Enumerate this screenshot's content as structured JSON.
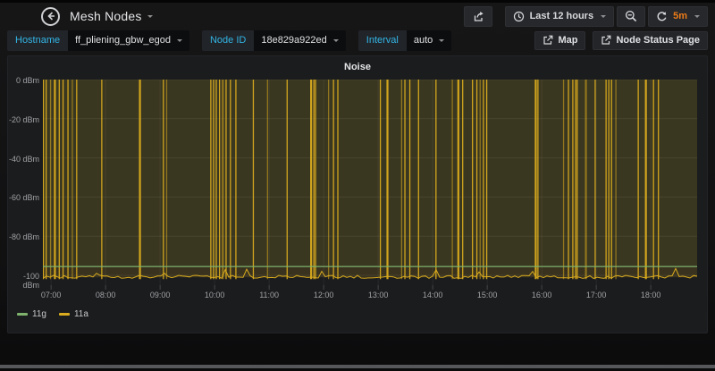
{
  "header": {
    "title": "Mesh Nodes",
    "time_range": "Last 12 hours",
    "refresh_interval": "5m"
  },
  "variables": [
    {
      "label": "Hostname",
      "value": "ff_pliening_gbw_egod"
    },
    {
      "label": "Node ID",
      "value": "18e829a922ed"
    },
    {
      "label": "Interval",
      "value": "auto"
    }
  ],
  "links": [
    {
      "label": "Map"
    },
    {
      "label": "Node Status Page"
    }
  ],
  "panel": {
    "title": "Noise"
  },
  "colors": {
    "accent_cyan": "#33b5e5",
    "accent_orange": "#eb7b18",
    "series_green": "#7eb26d",
    "series_yellow": "#d9ab1e"
  },
  "chart_data": {
    "type": "line",
    "title": "Noise",
    "ylabel": "dBm",
    "ylim": [
      -105,
      0
    ],
    "grid": true,
    "legend_position": "bottom-left",
    "y_ticks": [
      {
        "value": 0,
        "label": "0 dBm"
      },
      {
        "value": -20,
        "label": "-20 dBm"
      },
      {
        "value": -40,
        "label": "-40 dBm"
      },
      {
        "value": -60,
        "label": "-60 dBm"
      },
      {
        "value": -80,
        "label": "-80 dBm"
      },
      {
        "value": -100,
        "label": "-100 dBm"
      }
    ],
    "x_range_hours": [
      6.85,
      18.85
    ],
    "x_ticks": [
      {
        "hour": 7,
        "label": "07:00"
      },
      {
        "hour": 8,
        "label": "08:00"
      },
      {
        "hour": 9,
        "label": "09:00"
      },
      {
        "hour": 10,
        "label": "10:00"
      },
      {
        "hour": 11,
        "label": "11:00"
      },
      {
        "hour": 12,
        "label": "12:00"
      },
      {
        "hour": 13,
        "label": "13:00"
      },
      {
        "hour": 14,
        "label": "14:00"
      },
      {
        "hour": 15,
        "label": "15:00"
      },
      {
        "hour": 16,
        "label": "16:00"
      },
      {
        "hour": 17,
        "label": "17:00"
      },
      {
        "hour": 18,
        "label": "18:00"
      }
    ],
    "series": [
      {
        "name": "11g",
        "color": "#7eb26d",
        "shape": "flat",
        "value_dbm": -95.5
      },
      {
        "name": "11a",
        "color": "#d9ab1e",
        "shape": "noise-with-spikes",
        "baseline_dbm": -101,
        "jitter_dbm": 1.6,
        "spike_peak_dbm": 0,
        "fill_to_zero": true,
        "spike_times_h": [
          6.86,
          6.91,
          6.99,
          7.07,
          7.15,
          7.22,
          7.31,
          7.39,
          7.47,
          7.93,
          8.63,
          9.06,
          9.12,
          9.93,
          9.98,
          10.03,
          10.09,
          10.15,
          10.21,
          10.29,
          10.39,
          10.71,
          10.97,
          11.33,
          11.77,
          11.82,
          11.85,
          12.09,
          12.18,
          12.26,
          13.04,
          13.17,
          13.43,
          13.49,
          13.58,
          13.74,
          14.06,
          14.36,
          14.47,
          14.55,
          14.73,
          14.81,
          14.87,
          14.93,
          14.99,
          15.89,
          15.93,
          16.4,
          16.49,
          16.57,
          16.62,
          16.65,
          16.81,
          16.98,
          17.18,
          17.23,
          17.28,
          17.36,
          17.77,
          17.91,
          18.05,
          18.14
        ]
      }
    ]
  }
}
